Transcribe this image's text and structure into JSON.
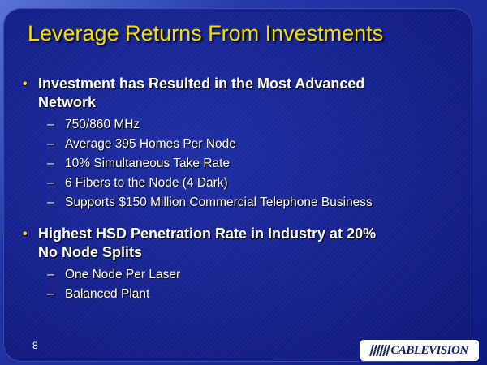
{
  "title": "Leverage Returns From Investments",
  "bullets": [
    {
      "lines": [
        "Investment has Resulted in the Most Advanced",
        "Network"
      ],
      "items": [
        "750/860 MHz",
        "Average 395 Homes Per Node",
        "10% Simultaneous Take Rate",
        "6 Fibers to the Node (4 Dark)",
        "Supports $150 Million Commercial Telephone Business"
      ]
    },
    {
      "lines": [
        "Highest HSD Penetration Rate in Industry at 20%",
        "No Node Splits"
      ],
      "items": [
        "One Node Per Laser",
        "Balanced Plant"
      ]
    }
  ],
  "page_number": "8",
  "logo": "CABLEVISION"
}
